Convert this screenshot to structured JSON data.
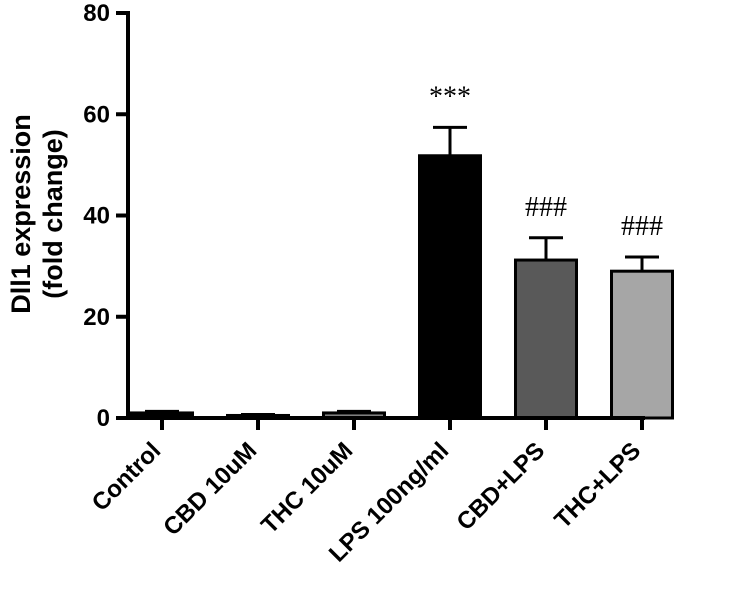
{
  "chart_data": {
    "type": "bar",
    "ylabel_lines": [
      "Dll1 expression",
      "(fold change)"
    ],
    "ylim": [
      0,
      80
    ],
    "yticks": [
      0,
      20,
      40,
      60,
      80
    ],
    "grid": false,
    "categories": [
      "Control",
      "CBD 10uM",
      "THC 10uM",
      "LPS 100ng/ml",
      "CBD+LPS",
      "THC+LPS"
    ],
    "values": [
      1.0,
      0.5,
      1.0,
      51.8,
      31.2,
      29.0
    ],
    "errors": [
      0.3,
      0.2,
      0.3,
      5.6,
      4.4,
      2.8
    ],
    "colors": [
      "#000000",
      "#000000",
      "#808080",
      "#000000",
      "#595959",
      "#a6a6a6"
    ],
    "annotations": [
      "",
      "",
      "",
      "***",
      "###",
      "###"
    ]
  }
}
